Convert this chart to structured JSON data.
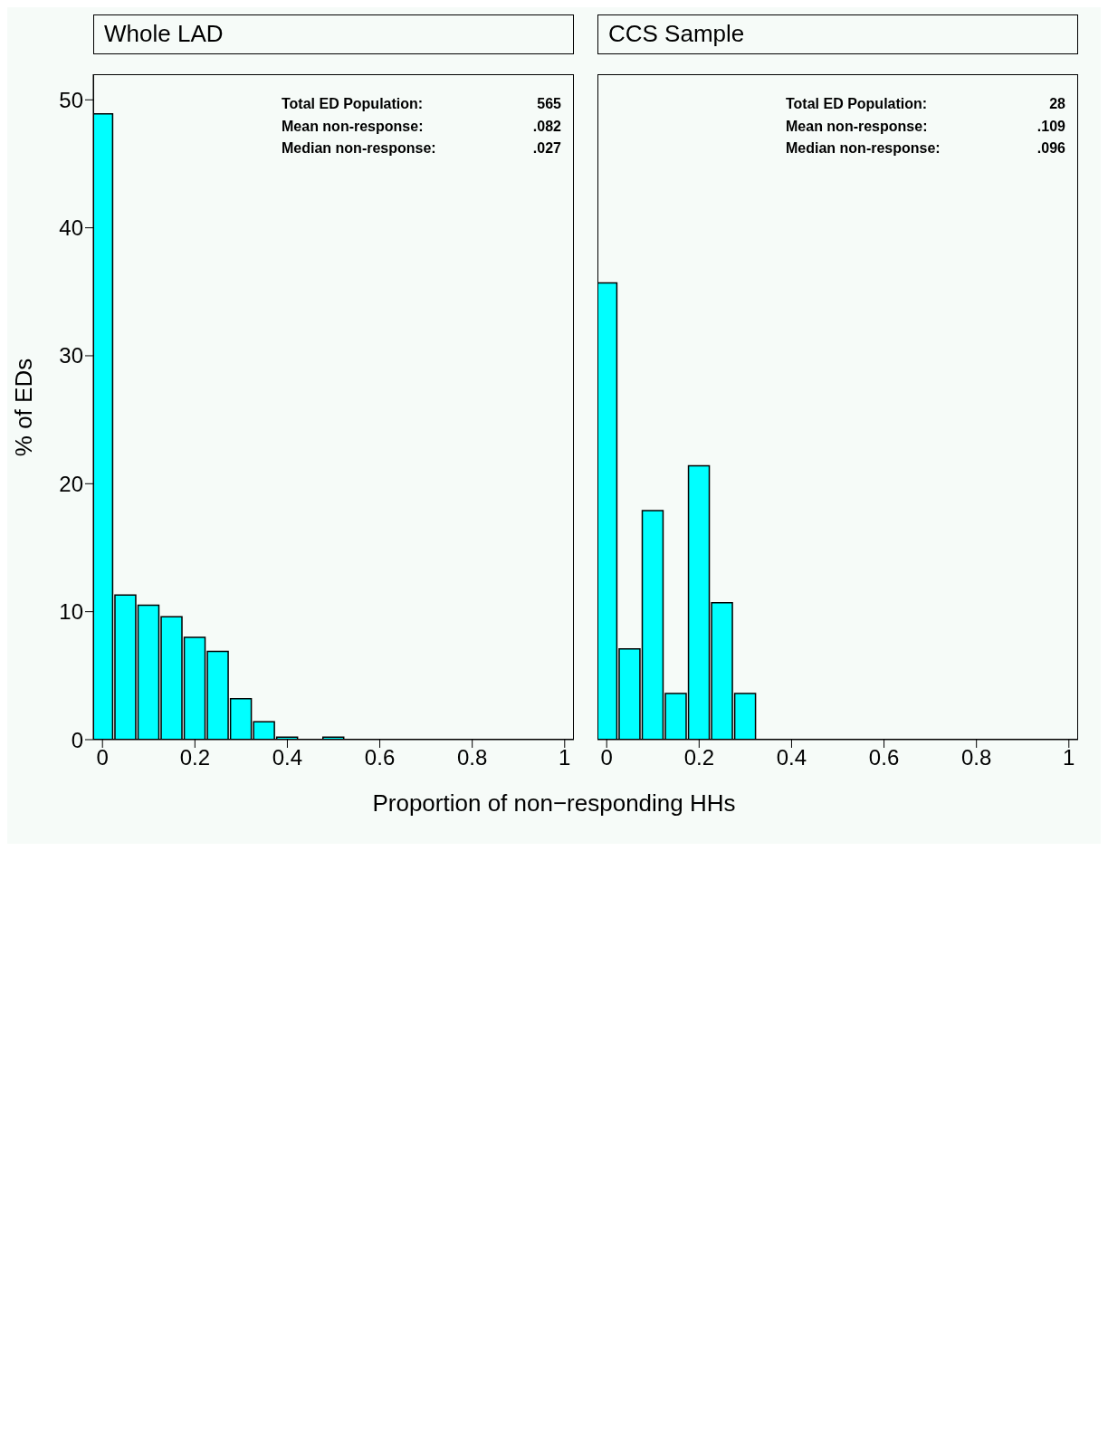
{
  "chart_data": [
    {
      "type": "histogram",
      "title": "Whole LAD",
      "xlabel": "Proportion of non−responding HHs",
      "ylabel": "% of EDs",
      "bins": [
        -0.025,
        0.025,
        0.075,
        0.125,
        0.175,
        0.225,
        0.275,
        0.325,
        0.375,
        0.425,
        0.475,
        0.525
      ],
      "values": [
        48.9,
        11.3,
        10.5,
        9.6,
        8.0,
        6.9,
        3.2,
        1.4,
        0.2,
        0,
        0.2
      ],
      "color": "#00ffff",
      "xlim": [
        -0.02,
        1.02
      ],
      "ylim": [
        0,
        52
      ],
      "xticks": [
        0,
        0.2,
        0.4,
        0.6,
        0.8,
        1
      ],
      "yticks": [
        0,
        10,
        20,
        30,
        40,
        50
      ],
      "annotations": [
        "Total ED Population:",
        "Mean non-response:",
        "Median non-response:",
        "565",
        ".082",
        ".027"
      ]
    },
    {
      "type": "histogram",
      "title": "CCS Sample",
      "bins": [
        -0.025,
        0.025,
        0.075,
        0.125,
        0.175,
        0.225,
        0.275,
        0.325
      ],
      "values": [
        35.7,
        7.1,
        17.9,
        3.6,
        21.4,
        10.7,
        3.6
      ],
      "color": "#00ffff",
      "xlim": [
        -0.02,
        1.02
      ],
      "ylim": [
        0,
        52
      ],
      "xticks": [
        0,
        0.2,
        0.4,
        0.6,
        0.8,
        1
      ],
      "yticks": [
        0,
        10,
        20,
        30,
        40,
        50
      ],
      "tick_labels": "x",
      "annotations": [
        "Total ED Population:",
        "Mean non-response:",
        "Median non-response:",
        "28",
        ".109",
        ".096"
      ]
    }
  ]
}
